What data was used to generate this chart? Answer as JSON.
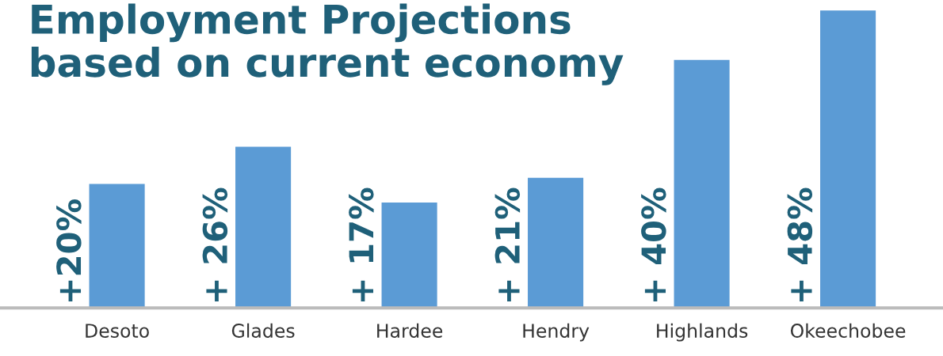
{
  "chart_data": {
    "type": "bar",
    "title": "Employment Projections\nbased on current economy",
    "categories": [
      "Desoto",
      "Glades",
      "Hardee",
      "Hendry",
      "Highlands",
      "Okeechobee"
    ],
    "values": [
      20,
      26,
      17,
      21,
      40,
      48
    ],
    "value_labels": [
      "+20%",
      "+ 26%",
      "+ 17%",
      "+ 21%",
      "+ 40%",
      "+ 48%"
    ],
    "color": "#5b9bd5"
  }
}
